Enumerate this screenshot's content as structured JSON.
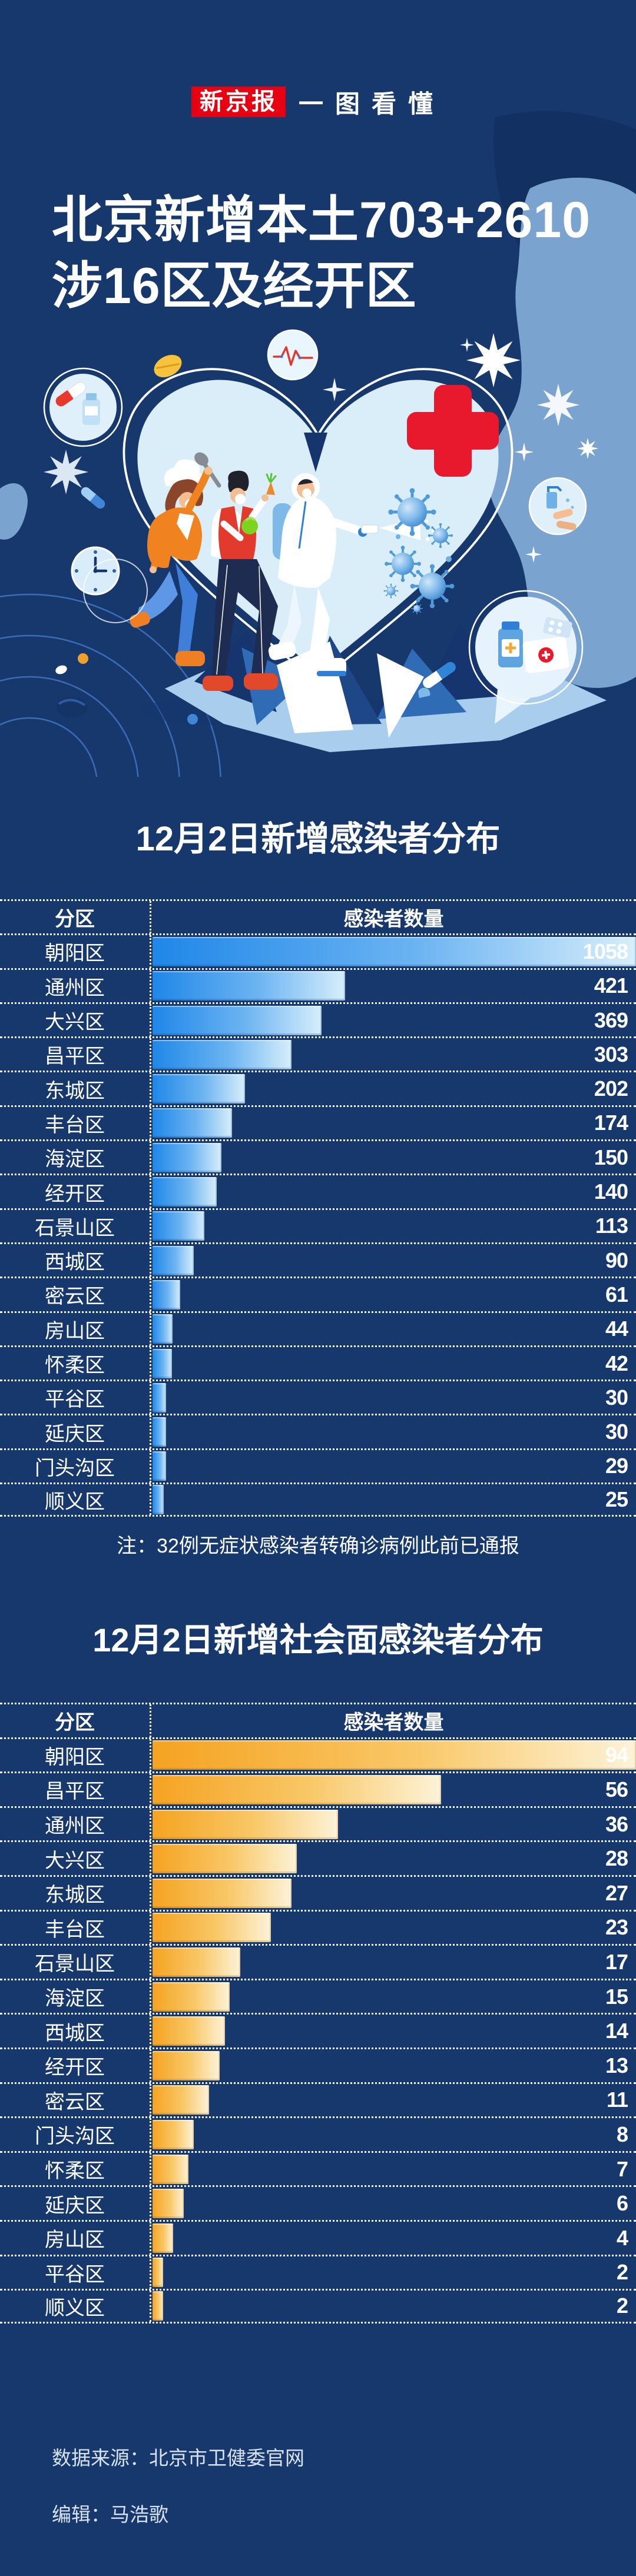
{
  "page": {
    "background": "#16386d"
  },
  "brand": {
    "name": "新京报",
    "tagline": "一图看懂",
    "brand_bg": "#e60012"
  },
  "hero": {
    "title_line1": "北京新增本土703+2610",
    "title_line2": "涉16区及经开区"
  },
  "illustration": {
    "heart_fill": "#d9eef9",
    "red_cross_color": "#e8192c",
    "blob_light": "#7aa4cf",
    "blob_dark": "#123061",
    "icon_names": [
      "red-cross-icon",
      "heart-icon",
      "chef-figure",
      "shopper-figure",
      "hazmat-worker-figure",
      "virus-icon",
      "medicine-circle-icon",
      "ecg-circle-icon",
      "handwash-circle-icon",
      "medkit-circle-icon",
      "clock-icon",
      "pill-icon",
      "capsule-icon",
      "starburst-icon"
    ]
  },
  "section1": {
    "title": "12月2日新增感染者分布"
  },
  "note": "注：32例无症状感染者转确诊病例此前已通报",
  "section2": {
    "title": "12月2日新增社会面感染者分布"
  },
  "footer": {
    "source": "数据来源：北京市卫健委官网",
    "editor": "编辑：马浩歌"
  },
  "chart_data": [
    {
      "type": "bar",
      "orientation": "horizontal",
      "title": "12月2日新增感染者分布",
      "columns": {
        "category": "分区",
        "value": "感染者数量"
      },
      "categories": [
        "朝阳区",
        "通州区",
        "大兴区",
        "昌平区",
        "东城区",
        "丰台区",
        "海淀区",
        "经开区",
        "石景山区",
        "西城区",
        "密云区",
        "房山区",
        "怀柔区",
        "平谷区",
        "延庆区",
        "门头沟区",
        "顺义区"
      ],
      "values": [
        1058,
        421,
        369,
        303,
        202,
        174,
        150,
        140,
        113,
        90,
        61,
        44,
        42,
        30,
        30,
        29,
        25
      ],
      "xlim": [
        0,
        1058
      ],
      "bar_gradient": [
        "#1f87e8",
        "#d7eefb"
      ],
      "grid": "dotted-white-row-borders",
      "value_labels": "right-aligned-white"
    },
    {
      "type": "bar",
      "orientation": "horizontal",
      "title": "12月2日新增社会面感染者分布",
      "columns": {
        "category": "分区",
        "value": "感染者数量"
      },
      "categories": [
        "朝阳区",
        "昌平区",
        "通州区",
        "大兴区",
        "东城区",
        "丰台区",
        "石景山区",
        "海淀区",
        "西城区",
        "经开区",
        "密云区",
        "门头沟区",
        "怀柔区",
        "延庆区",
        "房山区",
        "平谷区",
        "顺义区"
      ],
      "values": [
        94,
        56,
        36,
        28,
        27,
        23,
        17,
        15,
        14,
        13,
        11,
        8,
        7,
        6,
        4,
        2,
        2
      ],
      "xlim": [
        0,
        94
      ],
      "bar_gradient": [
        "#f5a321",
        "#fdf3d8"
      ],
      "grid": "dotted-white-row-borders",
      "value_labels": "right-aligned-white"
    }
  ]
}
